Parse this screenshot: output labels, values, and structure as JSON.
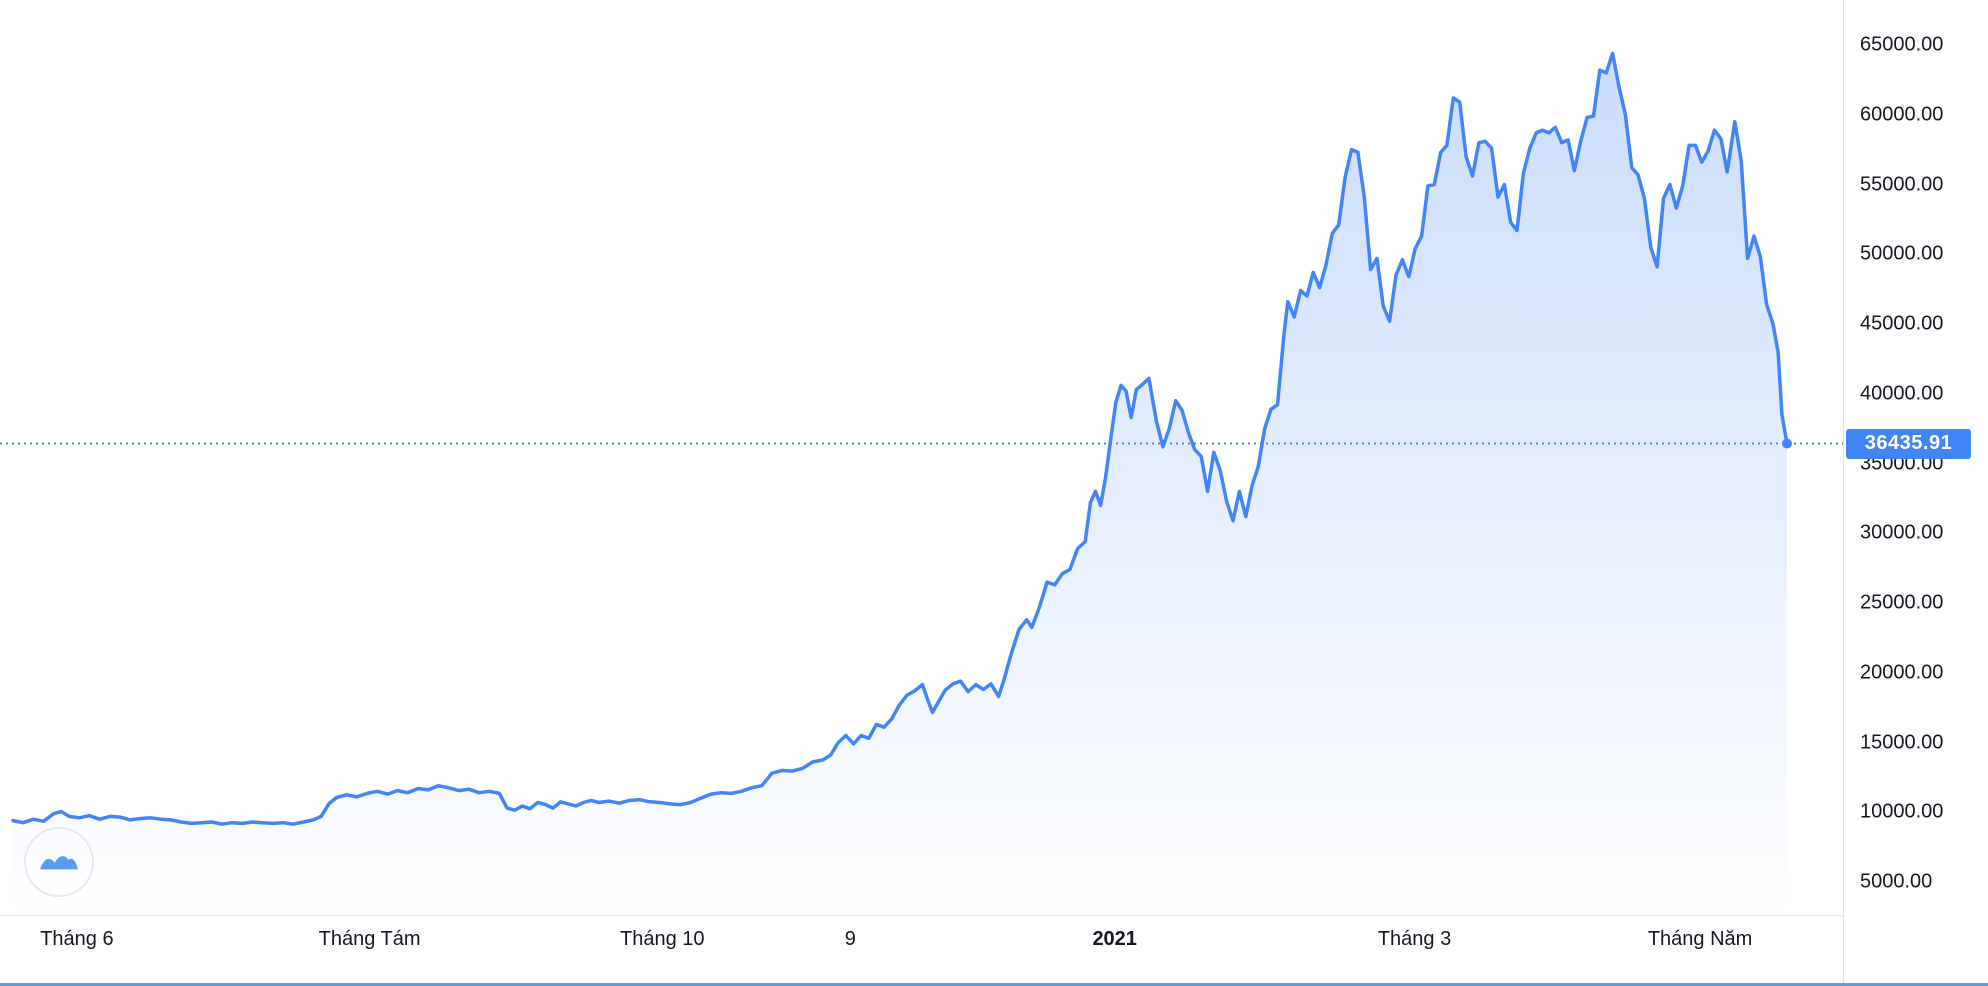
{
  "colors": {
    "line": "#4285f4",
    "area_top_opacity": 0.28,
    "area_bottom_opacity": 0,
    "axis_text": "#131722",
    "separator": "#e0e3eb",
    "badge_bg": "#4285f4",
    "badge_text": "#ffffff",
    "bottom_bar": "#5b9bf6",
    "watermark_glyph": "#4a90e8"
  },
  "icons": {
    "watermark": "tradingview-logo-icon"
  },
  "current_price_badge": {
    "label": "36435.91"
  },
  "chart_data": {
    "type": "area",
    "grid": false,
    "legend_position": "none",
    "y_axis": {
      "side": "right",
      "visible_min": 5000,
      "visible_max": 65000,
      "tick_interval": 5000
    },
    "current_price": 36435.91,
    "y_ticks": [
      {
        "label": "65000.00",
        "value": 65000
      },
      {
        "label": "60000.00",
        "value": 60000
      },
      {
        "label": "55000.00",
        "value": 55000
      },
      {
        "label": "50000.00",
        "value": 50000
      },
      {
        "label": "45000.00",
        "value": 45000
      },
      {
        "label": "40000.00",
        "value": 40000
      },
      {
        "label": "35000.00",
        "value": 35000
      },
      {
        "label": "30000.00",
        "value": 30000
      },
      {
        "label": "25000.00",
        "value": 25000
      },
      {
        "label": "20000.00",
        "value": 20000
      },
      {
        "label": "15000.00",
        "value": 15000
      },
      {
        "label": "10000.00",
        "value": 10000
      },
      {
        "label": "5000.00",
        "value": 5000
      }
    ],
    "x_ticks": [
      {
        "label": "Tháng 6",
        "t": 0.036,
        "bold": false
      },
      {
        "label": "Tháng Tám",
        "t": 0.201,
        "bold": false
      },
      {
        "label": "Tháng 10",
        "t": 0.366,
        "bold": false
      },
      {
        "label": "9",
        "t": 0.472,
        "bold": false
      },
      {
        "label": "2021",
        "t": 0.621,
        "bold": true
      },
      {
        "label": "Tháng 3",
        "t": 0.79,
        "bold": false
      },
      {
        "label": "Tháng Năm",
        "t": 0.951,
        "bold": false
      }
    ],
    "points": [
      [
        0,
        9400
      ],
      [
        0.0057,
        9250
      ],
      [
        0.0115,
        9500
      ],
      [
        0.0172,
        9350
      ],
      [
        0.023,
        9900
      ],
      [
        0.0273,
        10050
      ],
      [
        0.0316,
        9700
      ],
      [
        0.0373,
        9600
      ],
      [
        0.0431,
        9750
      ],
      [
        0.0488,
        9500
      ],
      [
        0.0546,
        9700
      ],
      [
        0.0603,
        9650
      ],
      [
        0.066,
        9450
      ],
      [
        0.0718,
        9550
      ],
      [
        0.0775,
        9600
      ],
      [
        0.0833,
        9500
      ],
      [
        0.089,
        9450
      ],
      [
        0.0948,
        9300
      ],
      [
        0.1005,
        9200
      ],
      [
        0.1062,
        9250
      ],
      [
        0.112,
        9300
      ],
      [
        0.1177,
        9150
      ],
      [
        0.1235,
        9250
      ],
      [
        0.1292,
        9200
      ],
      [
        0.135,
        9300
      ],
      [
        0.1407,
        9250
      ],
      [
        0.1464,
        9200
      ],
      [
        0.1522,
        9250
      ],
      [
        0.1579,
        9150
      ],
      [
        0.1637,
        9300
      ],
      [
        0.1694,
        9450
      ],
      [
        0.1737,
        9700
      ],
      [
        0.178,
        10600
      ],
      [
        0.1823,
        11050
      ],
      [
        0.1881,
        11250
      ],
      [
        0.1938,
        11100
      ],
      [
        0.1996,
        11350
      ],
      [
        0.2053,
        11500
      ],
      [
        0.2111,
        11300
      ],
      [
        0.2168,
        11550
      ],
      [
        0.2225,
        11400
      ],
      [
        0.2283,
        11700
      ],
      [
        0.234,
        11600
      ],
      [
        0.2398,
        11900
      ],
      [
        0.2455,
        11750
      ],
      [
        0.2513,
        11550
      ],
      [
        0.257,
        11650
      ],
      [
        0.2627,
        11400
      ],
      [
        0.2685,
        11500
      ],
      [
        0.2742,
        11350
      ],
      [
        0.2785,
        10300
      ],
      [
        0.2828,
        10150
      ],
      [
        0.2871,
        10450
      ],
      [
        0.2914,
        10250
      ],
      [
        0.2958,
        10700
      ],
      [
        0.3001,
        10550
      ],
      [
        0.3044,
        10300
      ],
      [
        0.3087,
        10750
      ],
      [
        0.313,
        10600
      ],
      [
        0.3173,
        10450
      ],
      [
        0.3216,
        10700
      ],
      [
        0.3259,
        10850
      ],
      [
        0.3302,
        10700
      ],
      [
        0.336,
        10800
      ],
      [
        0.3417,
        10650
      ],
      [
        0.3475,
        10850
      ],
      [
        0.3532,
        10900
      ],
      [
        0.3589,
        10750
      ],
      [
        0.3647,
        10700
      ],
      [
        0.3704,
        10600
      ],
      [
        0.3762,
        10550
      ],
      [
        0.3819,
        10700
      ],
      [
        0.3876,
        11000
      ],
      [
        0.3934,
        11300
      ],
      [
        0.3991,
        11400
      ],
      [
        0.4049,
        11350
      ],
      [
        0.4106,
        11500
      ],
      [
        0.4163,
        11750
      ],
      [
        0.4221,
        11900
      ],
      [
        0.4278,
        12800
      ],
      [
        0.4336,
        13000
      ],
      [
        0.4393,
        12950
      ],
      [
        0.4451,
        13150
      ],
      [
        0.4508,
        13600
      ],
      [
        0.4565,
        13750
      ],
      [
        0.4609,
        14100
      ],
      [
        0.4652,
        15000
      ],
      [
        0.4695,
        15500
      ],
      [
        0.4738,
        14900
      ],
      [
        0.4781,
        15500
      ],
      [
        0.4824,
        15300
      ],
      [
        0.4867,
        16300
      ],
      [
        0.491,
        16100
      ],
      [
        0.4954,
        16700
      ],
      [
        0.4997,
        17700
      ],
      [
        0.504,
        18400
      ],
      [
        0.5083,
        18700
      ],
      [
        0.5126,
        19150
      ],
      [
        0.5155,
        18100
      ],
      [
        0.5183,
        17150
      ],
      [
        0.5212,
        17800
      ],
      [
        0.5255,
        18750
      ],
      [
        0.5298,
        19200
      ],
      [
        0.5341,
        19400
      ],
      [
        0.5384,
        18650
      ],
      [
        0.5427,
        19150
      ],
      [
        0.547,
        18800
      ],
      [
        0.5513,
        19200
      ],
      [
        0.5556,
        18300
      ],
      [
        0.5585,
        19450
      ],
      [
        0.5628,
        21400
      ],
      [
        0.5671,
        23100
      ],
      [
        0.5714,
        23800
      ],
      [
        0.5743,
        23250
      ],
      [
        0.5786,
        24700
      ],
      [
        0.5829,
        26500
      ],
      [
        0.5872,
        26300
      ],
      [
        0.5915,
        27100
      ],
      [
        0.5958,
        27400
      ],
      [
        0.6001,
        28900
      ],
      [
        0.6044,
        29400
      ],
      [
        0.6073,
        32200
      ],
      [
        0.6102,
        33000
      ],
      [
        0.6131,
        32000
      ],
      [
        0.6159,
        34000
      ],
      [
        0.6188,
        36800
      ],
      [
        0.6217,
        39400
      ],
      [
        0.6246,
        40600
      ],
      [
        0.6274,
        40200
      ],
      [
        0.6303,
        38300
      ],
      [
        0.6332,
        40300
      ],
      [
        0.636,
        40600
      ],
      [
        0.6403,
        41100
      ],
      [
        0.6446,
        38000
      ],
      [
        0.6482,
        36200
      ],
      [
        0.6518,
        37500
      ],
      [
        0.6554,
        39500
      ],
      [
        0.659,
        38800
      ],
      [
        0.6626,
        37200
      ],
      [
        0.6662,
        36000
      ],
      [
        0.6698,
        35500
      ],
      [
        0.6734,
        33000
      ],
      [
        0.6769,
        35800
      ],
      [
        0.6805,
        34500
      ],
      [
        0.6841,
        32300
      ],
      [
        0.6877,
        30900
      ],
      [
        0.6913,
        33000
      ],
      [
        0.6949,
        31200
      ],
      [
        0.6984,
        33400
      ],
      [
        0.702,
        34800
      ],
      [
        0.7056,
        37500
      ],
      [
        0.7092,
        38900
      ],
      [
        0.7128,
        39200
      ],
      [
        0.7164,
        44200
      ],
      [
        0.7186,
        46600
      ],
      [
        0.7222,
        45500
      ],
      [
        0.7258,
        47400
      ],
      [
        0.7294,
        47000
      ],
      [
        0.7329,
        48700
      ],
      [
        0.7365,
        47600
      ],
      [
        0.7401,
        49200
      ],
      [
        0.7437,
        51500
      ],
      [
        0.7473,
        52100
      ],
      [
        0.7509,
        55500
      ],
      [
        0.7545,
        57500
      ],
      [
        0.7581,
        57300
      ],
      [
        0.7617,
        54100
      ],
      [
        0.7653,
        48900
      ],
      [
        0.7689,
        49700
      ],
      [
        0.7724,
        46300
      ],
      [
        0.776,
        45200
      ],
      [
        0.7796,
        48500
      ],
      [
        0.7832,
        49600
      ],
      [
        0.7868,
        48400
      ],
      [
        0.7904,
        50400
      ],
      [
        0.794,
        51300
      ],
      [
        0.7976,
        54900
      ],
      [
        0.8012,
        55000
      ],
      [
        0.8048,
        57300
      ],
      [
        0.8083,
        57800
      ],
      [
        0.8119,
        61200
      ],
      [
        0.8155,
        60900
      ],
      [
        0.8191,
        57000
      ],
      [
        0.8227,
        55600
      ],
      [
        0.8263,
        58000
      ],
      [
        0.8299,
        58100
      ],
      [
        0.8335,
        57600
      ],
      [
        0.8371,
        54100
      ],
      [
        0.8407,
        55000
      ],
      [
        0.8442,
        52300
      ],
      [
        0.8478,
        51700
      ],
      [
        0.8514,
        55800
      ],
      [
        0.855,
        57600
      ],
      [
        0.8586,
        58700
      ],
      [
        0.8622,
        58900
      ],
      [
        0.8658,
        58700
      ],
      [
        0.8694,
        59100
      ],
      [
        0.873,
        58000
      ],
      [
        0.8766,
        58200
      ],
      [
        0.8801,
        56000
      ],
      [
        0.8837,
        58100
      ],
      [
        0.8873,
        59800
      ],
      [
        0.8909,
        59900
      ],
      [
        0.8945,
        63200
      ],
      [
        0.8981,
        63000
      ],
      [
        0.9017,
        64400
      ],
      [
        0.9053,
        62000
      ],
      [
        0.9089,
        60000
      ],
      [
        0.9125,
        56200
      ],
      [
        0.916,
        55700
      ],
      [
        0.9196,
        54000
      ],
      [
        0.9232,
        50500
      ],
      [
        0.9268,
        49100
      ],
      [
        0.9304,
        54000
      ],
      [
        0.934,
        55000
      ],
      [
        0.9376,
        53300
      ],
      [
        0.9412,
        54900
      ],
      [
        0.9448,
        57800
      ],
      [
        0.9484,
        57800
      ],
      [
        0.9519,
        56600
      ],
      [
        0.9555,
        57400
      ],
      [
        0.9591,
        58900
      ],
      [
        0.9627,
        58300
      ],
      [
        0.9663,
        55900
      ],
      [
        0.9706,
        59500
      ],
      [
        0.9742,
        56700
      ],
      [
        0.9778,
        49700
      ],
      [
        0.9814,
        51300
      ],
      [
        0.985,
        49800
      ],
      [
        0.9885,
        46400
      ],
      [
        0.9921,
        45000
      ],
      [
        0.995,
        43000
      ],
      [
        0.9971,
        38500
      ],
      [
        1,
        36435.91
      ]
    ]
  }
}
